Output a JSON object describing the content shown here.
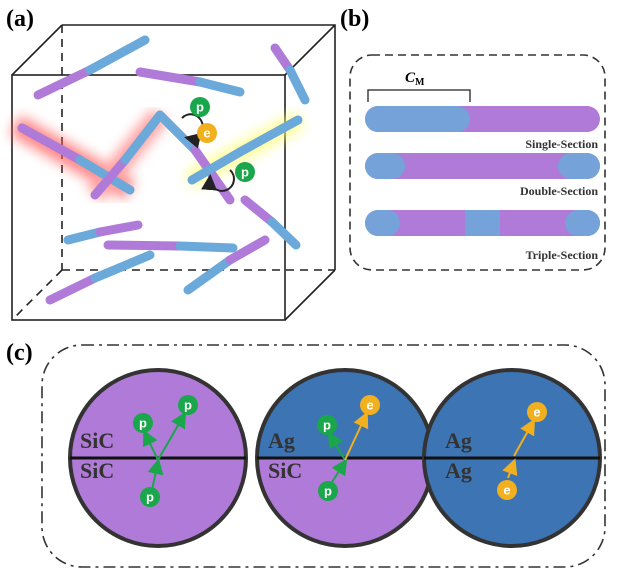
{
  "panels": [
    {
      "label": "(a)",
      "particles": [
        "p",
        "e",
        "p"
      ]
    },
    {
      "label": "(b)",
      "dimension": {
        "symbol": "C",
        "subscript": "M"
      },
      "rods": [
        "Single-Section",
        "Double-Section",
        "Triple-Section"
      ]
    },
    {
      "label": "(c)",
      "circles": [
        {
          "top": "SiC",
          "bottom": "SiC",
          "particles": [
            "p",
            "p",
            "p"
          ]
        },
        {
          "top": "Ag",
          "bottom": "SiC",
          "particles": [
            "p",
            "e",
            "p"
          ]
        },
        {
          "top": "Ag",
          "bottom": "Ag",
          "particles": [
            "e",
            "e"
          ]
        }
      ]
    }
  ]
}
